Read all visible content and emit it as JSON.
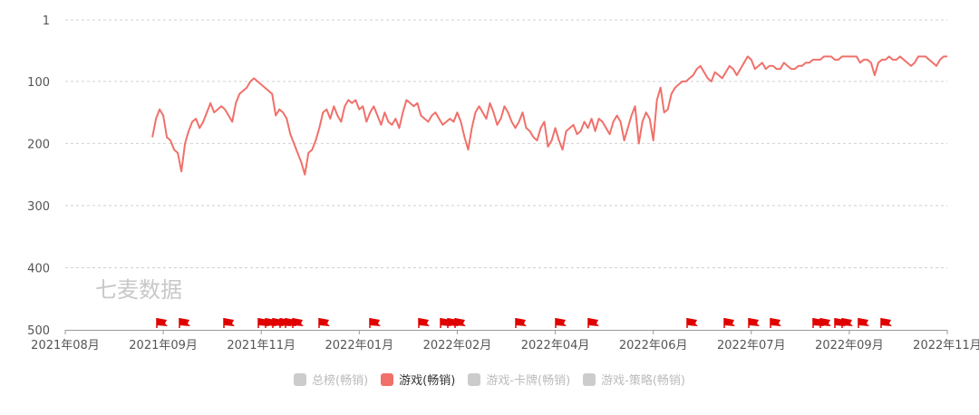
{
  "chart_data": {
    "type": "line",
    "y_inverted": true,
    "ylim": [
      1,
      500
    ],
    "y_ticks": [
      "1",
      "100",
      "200",
      "300",
      "400",
      "500"
    ],
    "x_tick_labels": [
      "2021年08月",
      "2021年09月",
      "2021年11月",
      "2022年01月",
      "2022年02月",
      "2022年04月",
      "2022年06月",
      "2022年07月",
      "2022年09月",
      "2022年11月"
    ],
    "watermark": "七麦数据",
    "legend": [
      {
        "name": "总榜(畅销)",
        "active": false
      },
      {
        "name": "游戏(畅销)",
        "active": true
      },
      {
        "name": "游戏-卡牌(畅销)",
        "active": false
      },
      {
        "name": "游戏-策略(畅销)",
        "active": false
      }
    ],
    "series": [
      {
        "name": "游戏(畅销)",
        "color": "#f0706a",
        "start_index": 24,
        "values": [
          190,
          160,
          145,
          155,
          190,
          195,
          210,
          215,
          245,
          200,
          180,
          165,
          160,
          175,
          165,
          150,
          135,
          150,
          145,
          140,
          145,
          155,
          165,
          135,
          120,
          115,
          110,
          100,
          95,
          100,
          105,
          110,
          115,
          120,
          155,
          145,
          150,
          160,
          185,
          200,
          215,
          230,
          250,
          215,
          210,
          195,
          175,
          150,
          145,
          160,
          140,
          155,
          165,
          140,
          130,
          135,
          130,
          145,
          140,
          165,
          150,
          140,
          155,
          170,
          150,
          165,
          170,
          160,
          175,
          150,
          130,
          135,
          140,
          135,
          155,
          160,
          165,
          155,
          150,
          160,
          170,
          165,
          160,
          165,
          150,
          165,
          190,
          210,
          175,
          150,
          140,
          150,
          160,
          135,
          150,
          170,
          160,
          140,
          150,
          165,
          175,
          165,
          150,
          175,
          180,
          190,
          195,
          175,
          165,
          205,
          195,
          175,
          195,
          210,
          180,
          175,
          170,
          185,
          180,
          165,
          175,
          160,
          180,
          160,
          165,
          175,
          185,
          165,
          155,
          165,
          195,
          175,
          155,
          140,
          200,
          165,
          150,
          160,
          195,
          130,
          110,
          150,
          145,
          120,
          110,
          105,
          100,
          100,
          95,
          90,
          80,
          75,
          85,
          95,
          100,
          85,
          90,
          95,
          85,
          75,
          80,
          90,
          80,
          70,
          60,
          65,
          80,
          75,
          70,
          80,
          75,
          75,
          80,
          80,
          70,
          75,
          80,
          80,
          75,
          75,
          70,
          70,
          65,
          65,
          65,
          60,
          60,
          60,
          65,
          65,
          60,
          60,
          60,
          60,
          60,
          70,
          65,
          65,
          70,
          90,
          70,
          65,
          65,
          60,
          65,
          65,
          60,
          65,
          70,
          75,
          70,
          60,
          60,
          60,
          65,
          70,
          75,
          65,
          60,
          60
        ]
      }
    ],
    "flags": [
      {
        "count": 1,
        "label": "2021年09月"
      },
      {
        "count": 1,
        "label": "2021年09月"
      },
      {
        "count": 1,
        "label": "2021年10月"
      },
      {
        "count": 4,
        "label": "2021年11月"
      },
      {
        "count": 2,
        "label": "2021年11月"
      },
      {
        "count": 1,
        "label": "2021年12月"
      },
      {
        "count": 1,
        "label": "2022年01月"
      },
      {
        "count": 1,
        "label": "2022年02月"
      },
      {
        "count": 3,
        "label": "2022年02月"
      },
      {
        "count": 1,
        "label": "2022年03月"
      },
      {
        "count": 1,
        "label": "2022年04月"
      },
      {
        "count": 1,
        "label": "2022年05月"
      },
      {
        "count": 1,
        "label": "2022年06月"
      },
      {
        "count": 1,
        "label": "2022年07月"
      },
      {
        "count": 1,
        "label": "2022年07月"
      },
      {
        "count": 1,
        "label": "2022年08月"
      },
      {
        "count": 2,
        "label": "2022年08月"
      },
      {
        "count": 2,
        "label": "2022年09月"
      },
      {
        "count": 1,
        "label": "2022年10月"
      },
      {
        "count": 1,
        "label": "2022年11月"
      }
    ],
    "colors": {
      "grid": "#d0d0d0",
      "flag": "#e00000",
      "inactive": "#cccccc",
      "axis": "#333333"
    }
  }
}
